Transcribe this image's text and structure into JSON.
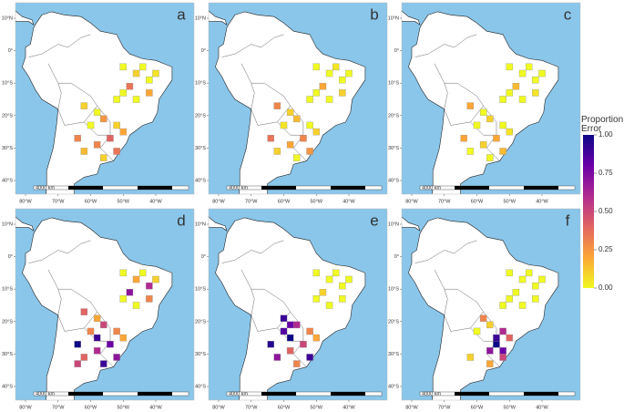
{
  "legend": {
    "title": "Proportion Error",
    "colorscale": [
      "#f0f921",
      "#fca636",
      "#e16462",
      "#b12a90",
      "#6a00a8",
      "#0d0887"
    ],
    "ticks": [
      {
        "value": 0,
        "label": "0.00"
      },
      {
        "value": 0.25,
        "label": "0.25"
      },
      {
        "value": 0.5,
        "label": "0.50"
      },
      {
        "value": 0.75,
        "label": "0.75"
      },
      {
        "value": 1,
        "label": "1.00"
      }
    ]
  },
  "lat_ticks": [
    {
      "value": 10,
      "label": "10°N"
    },
    {
      "value": 0,
      "label": "0°"
    },
    {
      "value": -10,
      "label": "10°S"
    },
    {
      "value": -20,
      "label": "20°S"
    },
    {
      "value": -30,
      "label": "30°S"
    },
    {
      "value": -40,
      "label": "40°S"
    }
  ],
  "lon_ticks": [
    {
      "value": -80,
      "label": "80°W"
    },
    {
      "value": -70,
      "label": "70°W"
    },
    {
      "value": -60,
      "label": "60°W"
    },
    {
      "value": -50,
      "label": "50°W"
    },
    {
      "value": -40,
      "label": "40°W"
    }
  ],
  "scale_bar_label": "4000 km",
  "panels": [
    {
      "label": "a",
      "cells": [
        [
          -50,
          -5,
          0
        ],
        [
          -46,
          -7,
          0.1
        ],
        [
          -44,
          -5,
          0
        ],
        [
          -42,
          -9,
          0
        ],
        [
          -40,
          -7,
          0.05
        ],
        [
          -48,
          -11,
          0.35
        ],
        [
          -42,
          -13,
          0.2
        ],
        [
          -50,
          -13,
          0
        ],
        [
          -46,
          -15,
          0
        ],
        [
          -52,
          -15,
          0
        ],
        [
          -62,
          -17,
          0.1
        ],
        [
          -58,
          -19,
          0
        ],
        [
          -56,
          -21,
          0.25
        ],
        [
          -52,
          -23,
          0.1
        ],
        [
          -50,
          -25,
          0.2
        ],
        [
          -54,
          -27,
          0.4
        ],
        [
          -58,
          -29,
          0.3
        ],
        [
          -62,
          -31,
          0.15
        ],
        [
          -52,
          -31,
          0.35
        ],
        [
          -56,
          -33,
          0.1
        ],
        [
          -64,
          -27,
          0.3
        ],
        [
          -60,
          -23,
          0
        ]
      ]
    },
    {
      "label": "b",
      "cells": [
        [
          -50,
          -5,
          0
        ],
        [
          -46,
          -7,
          0
        ],
        [
          -44,
          -5,
          0.05
        ],
        [
          -42,
          -9,
          0
        ],
        [
          -40,
          -7,
          0
        ],
        [
          -48,
          -11,
          0.2
        ],
        [
          -42,
          -13,
          0.1
        ],
        [
          -50,
          -13,
          0
        ],
        [
          -46,
          -15,
          0
        ],
        [
          -52,
          -15,
          0
        ],
        [
          -62,
          -17,
          0.3
        ],
        [
          -58,
          -19,
          0.1
        ],
        [
          -56,
          -21,
          0.15
        ],
        [
          -52,
          -23,
          0
        ],
        [
          -50,
          -25,
          0.1
        ],
        [
          -54,
          -27,
          0.3
        ],
        [
          -58,
          -29,
          0.2
        ],
        [
          -62,
          -31,
          0.1
        ],
        [
          -52,
          -31,
          0.25
        ],
        [
          -56,
          -33,
          0
        ],
        [
          -64,
          -27,
          0.35
        ],
        [
          -60,
          -23,
          0.05
        ]
      ]
    },
    {
      "label": "c",
      "cells": [
        [
          -50,
          -5,
          0
        ],
        [
          -46,
          -7,
          0
        ],
        [
          -44,
          -5,
          0
        ],
        [
          -42,
          -9,
          0
        ],
        [
          -40,
          -7,
          0
        ],
        [
          -48,
          -11,
          0.15
        ],
        [
          -42,
          -13,
          0.05
        ],
        [
          -50,
          -13,
          0
        ],
        [
          -46,
          -15,
          0
        ],
        [
          -52,
          -15,
          0
        ],
        [
          -62,
          -17,
          0.2
        ],
        [
          -58,
          -19,
          0
        ],
        [
          -56,
          -21,
          0.1
        ],
        [
          -52,
          -23,
          0
        ],
        [
          -50,
          -25,
          0.05
        ],
        [
          -54,
          -27,
          0.2
        ],
        [
          -58,
          -29,
          0.1
        ],
        [
          -62,
          -31,
          0
        ],
        [
          -52,
          -31,
          0.15
        ],
        [
          -56,
          -33,
          0
        ],
        [
          -64,
          -27,
          0.2
        ],
        [
          -60,
          -23,
          0
        ]
      ]
    },
    {
      "label": "d",
      "cells": [
        [
          -50,
          -5,
          0
        ],
        [
          -46,
          -7,
          0.2
        ],
        [
          -44,
          -5,
          0
        ],
        [
          -42,
          -9,
          0.6
        ],
        [
          -40,
          -7,
          0.1
        ],
        [
          -48,
          -11,
          0.7
        ],
        [
          -42,
          -13,
          0.3
        ],
        [
          -50,
          -13,
          0
        ],
        [
          -46,
          -15,
          0
        ],
        [
          -62,
          -17,
          0.4
        ],
        [
          -58,
          -19,
          0.2
        ],
        [
          -56,
          -21,
          0.5
        ],
        [
          -52,
          -23,
          0.3
        ],
        [
          -58,
          -25,
          0.9
        ],
        [
          -50,
          -25,
          0.2
        ],
        [
          -54,
          -27,
          0.8
        ],
        [
          -58,
          -29,
          0.6
        ],
        [
          -62,
          -31,
          0.4
        ],
        [
          -52,
          -31,
          0.7
        ],
        [
          -56,
          -33,
          0.9
        ],
        [
          -64,
          -27,
          1
        ],
        [
          -64,
          -33,
          0.5
        ],
        [
          -60,
          -23,
          0.3
        ]
      ]
    },
    {
      "label": "e",
      "cells": [
        [
          -50,
          -5,
          0
        ],
        [
          -46,
          -7,
          0
        ],
        [
          -44,
          -5,
          0
        ],
        [
          -42,
          -9,
          0
        ],
        [
          -40,
          -7,
          0
        ],
        [
          -48,
          -11,
          0.1
        ],
        [
          -42,
          -13,
          0
        ],
        [
          -50,
          -13,
          0
        ],
        [
          -46,
          -15,
          0
        ],
        [
          -60,
          -19,
          0.9
        ],
        [
          -58,
          -21,
          0.8
        ],
        [
          -56,
          -21,
          0.6
        ],
        [
          -52,
          -23,
          0.3
        ],
        [
          -58,
          -25,
          1
        ],
        [
          -50,
          -25,
          0.2
        ],
        [
          -54,
          -27,
          0.5
        ],
        [
          -58,
          -29,
          0.4
        ],
        [
          -62,
          -31,
          0.7
        ],
        [
          -52,
          -31,
          0.9
        ],
        [
          -56,
          -33,
          0.3
        ],
        [
          -64,
          -27,
          0.95
        ],
        [
          -60,
          -23,
          0.85
        ]
      ]
    },
    {
      "label": "f",
      "cells": [
        [
          -50,
          -5,
          0
        ],
        [
          -46,
          -7,
          0
        ],
        [
          -44,
          -5,
          0
        ],
        [
          -42,
          -9,
          0
        ],
        [
          -40,
          -7,
          0
        ],
        [
          -48,
          -11,
          0
        ],
        [
          -42,
          -13,
          0
        ],
        [
          -50,
          -13,
          0
        ],
        [
          -46,
          -15,
          0
        ],
        [
          -52,
          -15,
          0
        ],
        [
          -58,
          -19,
          0.3
        ],
        [
          -56,
          -21,
          0.1
        ],
        [
          -52,
          -23,
          0.6
        ],
        [
          -54,
          -25,
          0.9
        ],
        [
          -50,
          -25,
          0.4
        ],
        [
          -54,
          -27,
          1
        ],
        [
          -52,
          -29,
          0.8
        ],
        [
          -56,
          -29,
          0.7
        ],
        [
          -52,
          -31,
          0.5
        ],
        [
          -56,
          -33,
          0.2
        ],
        [
          -62,
          -31,
          0.1
        ],
        [
          -60,
          -23,
          0
        ]
      ]
    }
  ]
}
